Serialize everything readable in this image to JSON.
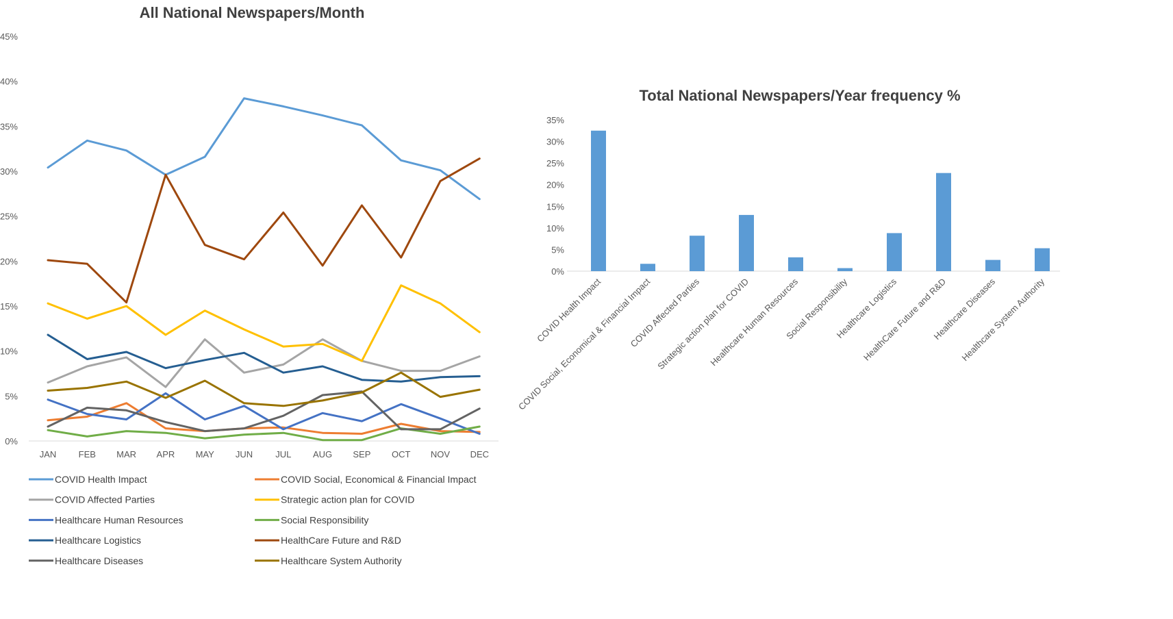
{
  "chart_data": [
    {
      "type": "line",
      "title": "All National Newspapers/Month",
      "xlabel": "",
      "ylabel": "",
      "categories": [
        "JAN",
        "FEB",
        "MAR",
        "APR",
        "MAY",
        "JUN",
        "JUL",
        "AUG",
        "SEP",
        "OCT",
        "NOV",
        "DEC"
      ],
      "ylim": [
        0,
        45
      ],
      "yticks": [
        "0%",
        "5%",
        "10%",
        "15%",
        "20%",
        "25%",
        "30%",
        "35%",
        "40%",
        "45%"
      ],
      "grid": false,
      "legend": "bottom",
      "series": [
        {
          "name": "COVID Health Impact",
          "color": "#5B9BD5",
          "values": [
            30.4,
            33.4,
            32.3,
            29.6,
            31.6,
            38.1,
            37.2,
            36.2,
            35.1,
            31.2,
            30.1,
            26.9
          ]
        },
        {
          "name": "COVID Social, Economical & Financial Impact",
          "color": "#ED7D31",
          "values": [
            2.3,
            2.7,
            4.2,
            1.4,
            1.1,
            1.4,
            1.5,
            0.9,
            0.8,
            1.9,
            1.1,
            1.0
          ]
        },
        {
          "name": "COVID Affected Parties",
          "color": "#A5A5A5",
          "values": [
            6.5,
            8.3,
            9.3,
            6.0,
            11.3,
            7.6,
            8.5,
            11.3,
            8.9,
            7.8,
            7.8,
            9.4
          ]
        },
        {
          "name": "Strategic action plan for COVID",
          "color": "#FFC000",
          "values": [
            15.3,
            13.6,
            15.0,
            11.8,
            14.5,
            12.4,
            10.5,
            10.8,
            8.9,
            17.3,
            15.3,
            12.1
          ]
        },
        {
          "name": "Healthcare Human Resources",
          "color": "#4472C4",
          "values": [
            4.6,
            3.0,
            2.4,
            5.3,
            2.4,
            3.9,
            1.3,
            3.1,
            2.2,
            4.1,
            2.5,
            0.8
          ]
        },
        {
          "name": "Social Responsibility",
          "color": "#70AD47",
          "values": [
            1.2,
            0.5,
            1.1,
            0.9,
            0.3,
            0.7,
            0.9,
            0.1,
            0.1,
            1.4,
            0.8,
            1.6
          ]
        },
        {
          "name": "Healthcare Logistics",
          "color": "#255E91",
          "values": [
            11.8,
            9.1,
            9.9,
            8.1,
            9.0,
            9.8,
            7.6,
            8.3,
            6.8,
            6.6,
            7.1,
            7.2
          ]
        },
        {
          "name": "HealthCare Future and R&D",
          "color": "#9E480E",
          "values": [
            20.1,
            19.7,
            15.4,
            29.6,
            21.8,
            20.2,
            25.4,
            19.5,
            26.2,
            20.4,
            28.9,
            31.4
          ]
        },
        {
          "name": "Healthcare Diseases",
          "color": "#636363",
          "values": [
            1.6,
            3.7,
            3.4,
            2.1,
            1.1,
            1.4,
            2.8,
            5.1,
            5.5,
            1.3,
            1.3,
            3.6
          ]
        },
        {
          "name": "Healthcare System Authority",
          "color": "#997300",
          "values": [
            5.6,
            5.9,
            6.6,
            4.8,
            6.7,
            4.2,
            3.9,
            4.5,
            5.4,
            7.6,
            4.9,
            5.7
          ]
        }
      ]
    },
    {
      "type": "bar",
      "title": "Total National Newspapers/Year  frequency %",
      "xlabel": "",
      "ylabel": "",
      "ylim": [
        0,
        35
      ],
      "yticks": [
        "0%",
        "5%",
        "10%",
        "15%",
        "20%",
        "25%",
        "30%",
        "35%"
      ],
      "grid": false,
      "color": "#5B9BD5",
      "categories": [
        "COVID Health Impact",
        "COVID Social, Economical & Financial Impact",
        "COVID Affected Parties",
        "Strategic action plan for COVID",
        "Healthcare Human Resources",
        "Social Responsibility",
        "Healthcare Logistics",
        "HealthCare Future and R&D",
        "Healthcare Diseases",
        "Healthcare System Authority"
      ],
      "values": [
        32.5,
        1.7,
        8.2,
        13.0,
        3.2,
        0.7,
        8.8,
        22.7,
        2.6,
        5.3
      ]
    }
  ]
}
